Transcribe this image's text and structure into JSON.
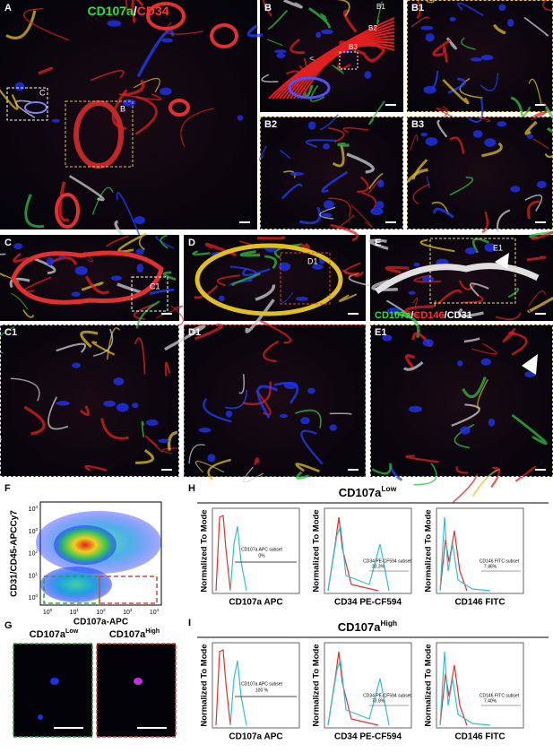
{
  "panels": {
    "A": {
      "label": "A",
      "title_green": "CD107a",
      "title_sep": "/",
      "title_red": "CD34",
      "inset_c": "C",
      "inset_b": "B"
    },
    "B": {
      "label": "B",
      "inset_b1": "B1",
      "inset_b2": "B2",
      "inset_b3": "B3"
    },
    "B1": {
      "label": "B1"
    },
    "B2": {
      "label": "B2"
    },
    "B3": {
      "label": "B3"
    },
    "C": {
      "label": "C",
      "inset": "C1"
    },
    "D": {
      "label": "D",
      "inset": "D1"
    },
    "E": {
      "label": "E",
      "inset": "E1",
      "legend_green": "CD107a",
      "sep1": "/",
      "legend_red": "CD146",
      "sep2": "/",
      "legend_white": "CD31"
    },
    "C1": {
      "label": "C1"
    },
    "D1": {
      "label": "D1"
    },
    "E1": {
      "label": "E1"
    },
    "F": {
      "label": "F",
      "y_label": "CD31/CD45-APCCy7",
      "x_label": "CD107a-APC",
      "tick_base": "10",
      "tick_exponents": [
        "0",
        "1",
        "2",
        "3",
        "4"
      ]
    },
    "G": {
      "label": "G",
      "left_name": "CD107a",
      "left_sup": "Low",
      "right_name": "CD107a",
      "right_sup": "High"
    },
    "H": {
      "label": "H",
      "title": "CD107a",
      "title_sup": "Low",
      "y_label": "Normalized To Mode",
      "plots": [
        {
          "x_label": "CD107a APC",
          "subset": "CD107a APC subset",
          "percent": "0%"
        },
        {
          "x_label": "CD34 PE-CF594",
          "subset": "CD34 PE-CF594 subset",
          "percent": "33.3%"
        },
        {
          "x_label": "CD146 FITC",
          "subset": "CD146 FITC subset",
          "percent": "7.46%"
        }
      ]
    },
    "I": {
      "label": "I",
      "title": "CD107a",
      "title_sup": "High",
      "y_label": "Normalized To Mode",
      "plots": [
        {
          "x_label": "CD107a APC",
          "subset": "CD107a APC subset",
          "percent": "100 %"
        },
        {
          "x_label": "CD34 PE-CF594",
          "subset": "CD34 PE-CF594 subset",
          "percent": "73.9%"
        },
        {
          "x_label": "CD146 FITC",
          "subset": "CD146 FITC subset",
          "percent": "7.40%"
        }
      ]
    }
  }
}
